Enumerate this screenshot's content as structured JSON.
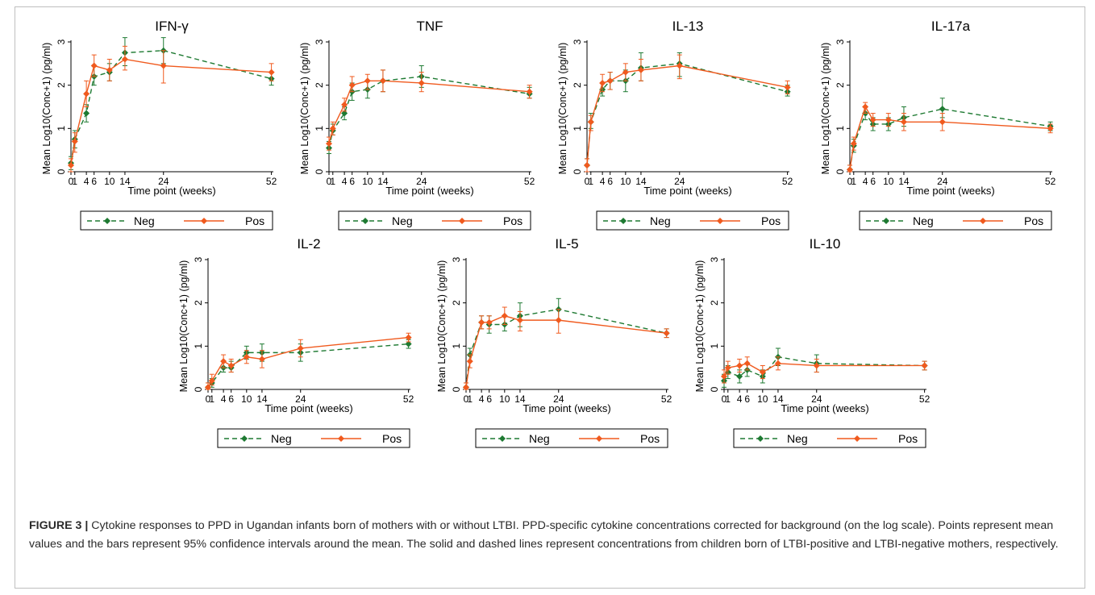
{
  "figure": {
    "label": "FIGURE 3 |",
    "caption_text": " Cytokine responses to PPD in Ugandan infants born of mothers with or without LTBI. PPD-specific cytokine concentrations corrected for background (on the log scale). Points represent mean values and the bars represent 95% confidence intervals around the mean. The solid and dashed lines represent concentrations from children born of LTBI-positive and LTBI-negative mothers, respectively."
  },
  "colors": {
    "neg": "#1e7a32",
    "pos": "#f05a1e",
    "axis": "#000000"
  },
  "chart_data": [
    {
      "type": "line",
      "title": "IFN-γ",
      "xlabel": "Time point (weeks)",
      "ylabel": "Mean Log10(Conc+1) (pg/ml)",
      "x": [
        0,
        1,
        4,
        6,
        10,
        14,
        24,
        52
      ],
      "xticks": [
        "0",
        "1",
        "4",
        "6",
        "10",
        "14",
        "24",
        "52"
      ],
      "yticks": [
        0,
        1,
        2,
        3
      ],
      "ylim": [
        0,
        3
      ],
      "legend_position": "bottom",
      "series": [
        {
          "name": "Neg",
          "style": "dashed",
          "values": [
            0.2,
            0.75,
            1.35,
            2.2,
            2.3,
            2.75,
            2.8,
            2.15
          ],
          "ci_low": [
            0.05,
            0.55,
            1.15,
            2.0,
            2.1,
            2.45,
            2.5,
            2.0
          ],
          "ci_high": [
            0.35,
            0.95,
            1.55,
            2.45,
            2.5,
            3.1,
            3.1,
            2.3
          ]
        },
        {
          "name": "Pos",
          "style": "solid",
          "values": [
            0.15,
            0.7,
            1.8,
            2.45,
            2.35,
            2.6,
            2.45,
            2.3
          ],
          "ci_low": [
            0.0,
            0.45,
            1.5,
            2.2,
            2.1,
            2.35,
            2.05,
            2.1
          ],
          "ci_high": [
            0.3,
            0.9,
            2.1,
            2.7,
            2.6,
            2.9,
            2.8,
            2.5
          ]
        }
      ]
    },
    {
      "type": "line",
      "title": "TNF",
      "xlabel": "Time point (weeks)",
      "ylabel": "Mean Log10(Conc+1) (pg/ml)",
      "x": [
        0,
        1,
        4,
        6,
        10,
        14,
        24,
        52
      ],
      "xticks": [
        "0",
        "1",
        "4",
        "6",
        "10",
        "14",
        "24",
        "52"
      ],
      "yticks": [
        0,
        1,
        2,
        3
      ],
      "ylim": [
        0,
        3
      ],
      "legend_position": "bottom",
      "series": [
        {
          "name": "Neg",
          "style": "dashed",
          "values": [
            0.55,
            0.95,
            1.35,
            1.85,
            1.9,
            2.1,
            2.2,
            1.8
          ],
          "ci_low": [
            0.42,
            0.85,
            1.2,
            1.65,
            1.7,
            1.85,
            1.95,
            1.7
          ],
          "ci_high": [
            0.7,
            1.1,
            1.5,
            2.05,
            2.1,
            2.35,
            2.45,
            1.95
          ]
        },
        {
          "name": "Pos",
          "style": "solid",
          "values": [
            0.65,
            1.0,
            1.55,
            2.0,
            2.1,
            2.1,
            2.05,
            1.85
          ],
          "ci_low": [
            0.5,
            0.85,
            1.4,
            1.85,
            1.9,
            1.85,
            1.85,
            1.7
          ],
          "ci_high": [
            0.8,
            1.15,
            1.7,
            2.2,
            2.25,
            2.35,
            2.3,
            2.0
          ]
        }
      ]
    },
    {
      "type": "line",
      "title": "IL-13",
      "xlabel": "Time point (weeks)",
      "ylabel": "Mean Log10(Conc+1) (pg/ml)",
      "x": [
        0,
        1,
        4,
        6,
        10,
        14,
        24,
        52
      ],
      "xticks": [
        "0",
        "1",
        "4",
        "6",
        "10",
        "14",
        "24",
        "52"
      ],
      "yticks": [
        0,
        1,
        2,
        3
      ],
      "ylim": [
        0,
        3
      ],
      "legend_position": "bottom",
      "series": [
        {
          "name": "Neg",
          "style": "dashed",
          "values": [
            0.15,
            1.15,
            1.9,
            2.1,
            2.1,
            2.4,
            2.5,
            1.85
          ],
          "ci_low": [
            0.0,
            1.0,
            1.75,
            1.9,
            1.85,
            2.1,
            2.2,
            1.75
          ],
          "ci_high": [
            0.3,
            1.35,
            2.05,
            2.3,
            2.35,
            2.75,
            2.75,
            2.0
          ]
        },
        {
          "name": "Pos",
          "style": "solid",
          "values": [
            0.15,
            1.15,
            2.05,
            2.1,
            2.3,
            2.35,
            2.45,
            1.95
          ],
          "ci_low": [
            0.0,
            0.95,
            1.85,
            1.9,
            2.1,
            2.1,
            2.15,
            1.8
          ],
          "ci_high": [
            0.3,
            1.3,
            2.25,
            2.3,
            2.5,
            2.6,
            2.7,
            2.1
          ]
        }
      ]
    },
    {
      "type": "line",
      "title": "IL-17a",
      "xlabel": "Time point (weeks)",
      "ylabel": "Mean Log10(Conc+1) (pg/ml)",
      "x": [
        0,
        1,
        4,
        6,
        10,
        14,
        24,
        52
      ],
      "xticks": [
        "0",
        "1",
        "4",
        "6",
        "10",
        "14",
        "24",
        "52"
      ],
      "yticks": [
        0,
        1,
        2,
        3
      ],
      "ylim": [
        0,
        3
      ],
      "legend_position": "bottom",
      "series": [
        {
          "name": "Neg",
          "style": "dashed",
          "values": [
            0.05,
            0.6,
            1.35,
            1.1,
            1.1,
            1.25,
            1.45,
            1.05
          ],
          "ci_low": [
            0.0,
            0.45,
            1.2,
            0.95,
            0.95,
            1.05,
            1.25,
            0.95
          ],
          "ci_high": [
            0.15,
            0.75,
            1.5,
            1.25,
            1.25,
            1.5,
            1.7,
            1.15
          ]
        },
        {
          "name": "Pos",
          "style": "solid",
          "values": [
            0.05,
            0.65,
            1.5,
            1.2,
            1.2,
            1.15,
            1.15,
            1.0
          ],
          "ci_low": [
            0.0,
            0.5,
            1.35,
            1.05,
            1.05,
            0.95,
            0.95,
            0.9
          ],
          "ci_high": [
            0.15,
            0.8,
            1.6,
            1.35,
            1.35,
            1.35,
            1.35,
            1.1
          ]
        }
      ]
    },
    {
      "type": "line",
      "title": "IL-2",
      "xlabel": "Time point (weeks)",
      "ylabel": "Mean Log10(Conc+1) (pg/ml)",
      "x": [
        0,
        1,
        4,
        6,
        10,
        14,
        24,
        52
      ],
      "xticks": [
        "0",
        "1",
        "4",
        "6",
        "10",
        "14",
        "24",
        "52"
      ],
      "yticks": [
        0,
        1,
        2,
        3
      ],
      "ylim": [
        0,
        3
      ],
      "legend_position": "bottom",
      "series": [
        {
          "name": "Neg",
          "style": "dashed",
          "values": [
            0.05,
            0.15,
            0.5,
            0.5,
            0.85,
            0.85,
            0.85,
            1.05
          ],
          "ci_low": [
            0.0,
            0.05,
            0.4,
            0.4,
            0.7,
            0.65,
            0.65,
            0.95
          ],
          "ci_high": [
            0.15,
            0.25,
            0.65,
            0.65,
            1.0,
            1.05,
            1.05,
            1.15
          ]
        },
        {
          "name": "Pos",
          "style": "solid",
          "values": [
            0.05,
            0.2,
            0.65,
            0.55,
            0.75,
            0.7,
            0.95,
            1.2
          ],
          "ci_low": [
            0.0,
            0.1,
            0.5,
            0.4,
            0.6,
            0.5,
            0.75,
            1.1
          ],
          "ci_high": [
            0.15,
            0.35,
            0.8,
            0.7,
            0.9,
            0.9,
            1.15,
            1.3
          ]
        }
      ]
    },
    {
      "type": "line",
      "title": "IL-5",
      "xlabel": "Time point (weeks)",
      "ylabel": "Mean Log10(Conc+1) (pg/ml)",
      "x": [
        0,
        1,
        4,
        6,
        10,
        14,
        24,
        52
      ],
      "xticks": [
        "0",
        "1",
        "4",
        "6",
        "10",
        "14",
        "24",
        "52"
      ],
      "yticks": [
        0,
        1,
        2,
        3
      ],
      "ylim": [
        0,
        3
      ],
      "legend_position": "bottom",
      "series": [
        {
          "name": "Neg",
          "style": "dashed",
          "values": [
            0.05,
            0.8,
            1.55,
            1.5,
            1.5,
            1.7,
            1.85,
            1.3
          ],
          "ci_low": [
            0.0,
            0.65,
            1.4,
            1.3,
            1.35,
            1.45,
            1.6,
            1.2
          ],
          "ci_high": [
            0.15,
            0.95,
            1.7,
            1.7,
            1.7,
            2.0,
            2.1,
            1.4
          ]
        },
        {
          "name": "Pos",
          "style": "solid",
          "values": [
            0.05,
            0.65,
            1.55,
            1.55,
            1.7,
            1.6,
            1.6,
            1.3
          ],
          "ci_low": [
            0.0,
            0.5,
            1.4,
            1.4,
            1.5,
            1.35,
            1.3,
            1.2
          ],
          "ci_high": [
            0.15,
            0.8,
            1.7,
            1.7,
            1.9,
            1.8,
            1.85,
            1.4
          ]
        }
      ]
    },
    {
      "type": "line",
      "title": "IL-10",
      "xlabel": "Time point (weeks)",
      "ylabel": "Mean Log10(Conc+1) (pg/ml)",
      "x": [
        0,
        1,
        4,
        6,
        10,
        14,
        24,
        52
      ],
      "xticks": [
        "0",
        "1",
        "4",
        "6",
        "10",
        "14",
        "24",
        "52"
      ],
      "yticks": [
        0,
        1,
        2,
        3
      ],
      "ylim": [
        0,
        3
      ],
      "legend_position": "bottom",
      "series": [
        {
          "name": "Neg",
          "style": "dashed",
          "values": [
            0.2,
            0.4,
            0.3,
            0.45,
            0.3,
            0.75,
            0.6,
            0.55
          ],
          "ci_low": [
            0.05,
            0.25,
            0.15,
            0.3,
            0.15,
            0.55,
            0.4,
            0.45
          ],
          "ci_high": [
            0.35,
            0.55,
            0.45,
            0.6,
            0.45,
            0.95,
            0.8,
            0.65
          ]
        },
        {
          "name": "Pos",
          "style": "solid",
          "values": [
            0.3,
            0.5,
            0.55,
            0.6,
            0.4,
            0.6,
            0.55,
            0.55
          ],
          "ci_low": [
            0.15,
            0.35,
            0.4,
            0.45,
            0.25,
            0.45,
            0.4,
            0.45
          ],
          "ci_high": [
            0.45,
            0.65,
            0.7,
            0.75,
            0.55,
            0.75,
            0.7,
            0.65
          ]
        }
      ]
    }
  ]
}
